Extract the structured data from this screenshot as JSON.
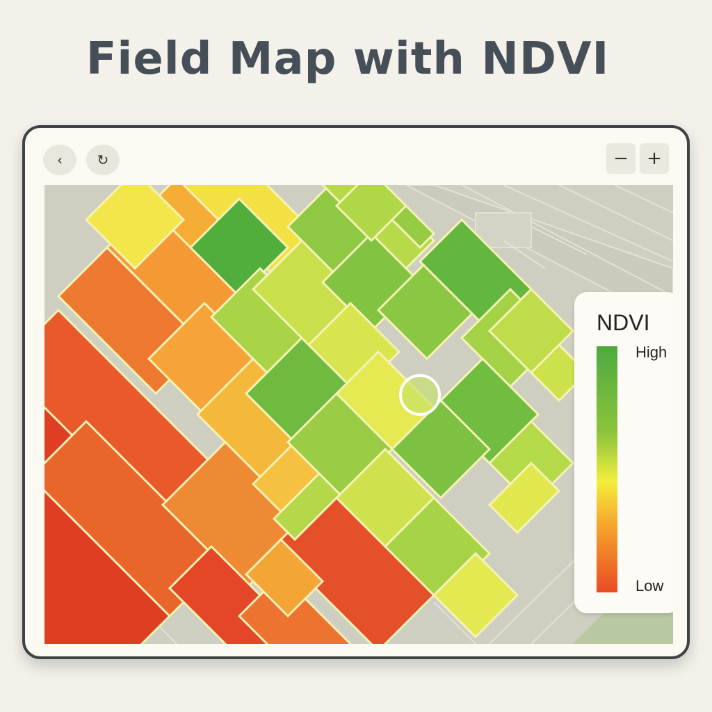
{
  "page": {
    "title": "Field Map with NDVI"
  },
  "toolbar": {
    "back_icon": "‹",
    "refresh_icon": "↻",
    "zoom_out_label": "−",
    "zoom_in_label": "+"
  },
  "legend": {
    "title": "NDVI",
    "high_label": "High",
    "low_label": "Low"
  },
  "colors": {
    "high": "#4caa3e",
    "mid_high": "#8cc43c",
    "mid": "#f4ee3c",
    "mid_low": "#f6a82c",
    "low": "#ea4a24",
    "basemap": "#cfcfc1"
  }
}
